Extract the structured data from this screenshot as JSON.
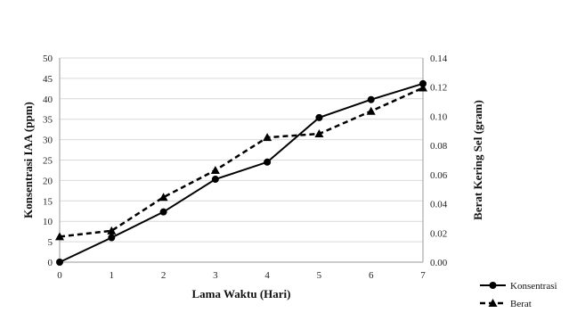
{
  "chart_data": {
    "type": "line",
    "title": "",
    "xlabel": "Lama Waktu (Hari)",
    "ylabel_left": "Konsentrasi IAA (ppm)",
    "ylabel_right": "Berat Kering Sel (gram)",
    "x": [
      0,
      1,
      2,
      3,
      4,
      5,
      6,
      7
    ],
    "x_ticks": [
      "0",
      "1",
      "2",
      "3",
      "4",
      "5",
      "6",
      "7"
    ],
    "xlim": [
      0,
      7
    ],
    "ylim_left": [
      0,
      50
    ],
    "ylim_right": [
      0,
      0.14
    ],
    "y_ticks_left": [
      "0",
      "5",
      "10",
      "15",
      "20",
      "25",
      "30",
      "35",
      "40",
      "45",
      "50"
    ],
    "y_ticks_right": [
      "0.00",
      "0.02",
      "0.04",
      "0.06",
      "0.08",
      "0.10",
      "0.12",
      "0.14"
    ],
    "grid": "horizontal",
    "legend_position": "bottom-right",
    "series": [
      {
        "name": "Konsentrasi",
        "axis": "left",
        "style": "solid",
        "marker": "circle",
        "color": "#000000",
        "values": [
          0,
          6,
          12.3,
          20.3,
          24.5,
          35.4,
          39.8,
          43.7
        ]
      },
      {
        "name": "Berat",
        "axis": "right",
        "style": "dashed",
        "marker": "triangle",
        "color": "#000000",
        "values": [
          0.0175,
          0.0215,
          0.0445,
          0.063,
          0.0855,
          0.088,
          0.1035,
          0.1195
        ]
      }
    ]
  }
}
